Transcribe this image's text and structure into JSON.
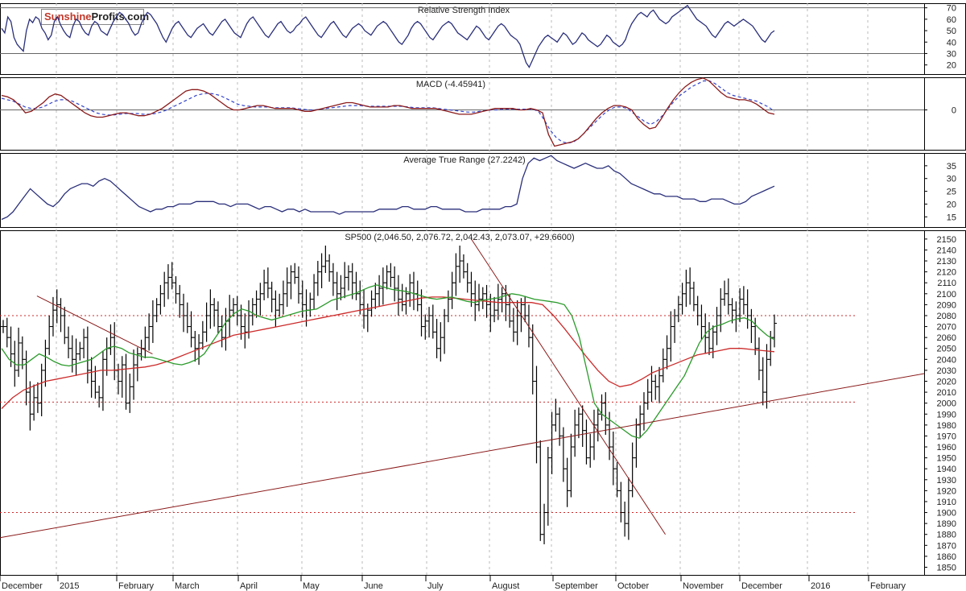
{
  "logo": {
    "part1": "Sunshine",
    "part2": "Profits.com"
  },
  "colors": {
    "rsi_line": "#2a2f7a",
    "macd_line": "#8b1a1a",
    "signal_line": "#3344cc",
    "atr_line": "#2a2f7a",
    "price_bars": "#000000",
    "ma_short": "#2a9a2a",
    "ma_long": "#cc2a2a",
    "trendline": "#8b1a1a",
    "support_dotted": "#cc2a2a",
    "grid": "#bbbbbb"
  },
  "chart_data": [
    {
      "type": "line",
      "name": "rsi",
      "title": "Relative Strength Index",
      "ylim": [
        12,
        74
      ],
      "yticks": [
        20,
        30,
        40,
        50,
        60,
        70
      ],
      "reference_lines": [
        30,
        70
      ],
      "values": [
        52,
        48,
        62,
        58,
        44,
        38,
        35,
        32,
        50,
        60,
        57,
        62,
        60,
        52,
        48,
        42,
        46,
        58,
        62,
        55,
        50,
        46,
        44,
        54,
        60,
        58,
        52,
        48,
        46,
        54,
        58,
        56,
        50,
        48,
        46,
        52,
        58,
        62,
        66,
        64,
        60,
        56,
        50,
        46,
        48,
        56,
        62,
        66,
        64,
        60,
        56,
        50,
        44,
        40,
        46,
        52,
        56,
        58,
        54,
        50,
        46,
        44,
        48,
        52,
        54,
        56,
        52,
        48,
        46,
        50,
        54,
        58,
        60,
        56,
        52,
        48,
        46,
        44,
        50,
        56,
        60,
        62,
        58,
        54,
        50,
        46,
        44,
        48,
        52,
        56,
        58,
        54,
        50,
        48,
        50,
        54,
        56,
        60,
        62,
        58,
        54,
        50,
        46,
        44,
        48,
        52,
        56,
        58,
        54,
        50,
        46,
        44,
        48,
        52,
        54,
        56,
        54,
        50,
        48,
        46,
        50,
        54,
        56,
        58,
        56,
        52,
        48,
        44,
        40,
        38,
        42,
        46,
        52,
        56,
        58,
        56,
        52,
        48,
        44,
        42,
        46,
        50,
        54,
        56,
        58,
        56,
        52,
        48,
        46,
        44,
        42,
        46,
        50,
        54,
        52,
        48,
        44,
        42,
        46,
        50,
        54,
        56,
        54,
        50,
        46,
        44,
        42,
        38,
        30,
        22,
        18,
        24,
        30,
        36,
        40,
        44,
        46,
        44,
        42,
        40,
        44,
        48,
        46,
        42,
        38,
        40,
        44,
        48,
        46,
        42,
        40,
        38,
        36,
        38,
        42,
        46,
        44,
        40,
        38,
        36,
        38,
        42,
        50,
        56,
        60,
        64,
        66,
        64,
        62,
        66,
        68,
        64,
        60,
        58,
        56,
        58,
        62,
        64,
        66,
        68,
        70,
        72,
        68,
        64,
        60,
        58,
        56,
        54,
        50,
        46,
        44,
        48,
        52,
        56,
        58,
        56,
        54,
        56,
        58,
        60,
        58,
        56,
        54,
        50,
        46,
        42,
        40,
        44,
        48,
        50
      ]
    },
    {
      "type": "line",
      "name": "macd",
      "title": "MACD (-4.45941)",
      "ylim": [
        -55,
        45
      ],
      "yticks": [
        0
      ],
      "zero_line": true,
      "series": [
        {
          "values": [
            20,
            18,
            14,
            6,
            -4,
            -2,
            4,
            10,
            18,
            22,
            20,
            14,
            8,
            2,
            -4,
            -8,
            -10,
            -10,
            -8,
            -6,
            -4,
            -4,
            -6,
            -8,
            -8,
            -6,
            -2,
            2,
            8,
            14,
            20,
            26,
            28,
            28,
            26,
            22,
            16,
            10,
            4,
            0,
            0,
            2,
            4,
            6,
            6,
            4,
            2,
            2,
            2,
            2,
            0,
            -2,
            -2,
            0,
            2,
            4,
            6,
            8,
            10,
            10,
            8,
            6,
            4,
            4,
            4,
            4,
            6,
            6,
            4,
            2,
            2,
            2,
            2,
            2,
            0,
            -2,
            -4,
            -6,
            -6,
            -6,
            -4,
            -2,
            0,
            2,
            2,
            2,
            2,
            0,
            0,
            2,
            0,
            -4,
            -34,
            -50,
            -48,
            -46,
            -44,
            -40,
            -32,
            -22,
            -12,
            -4,
            2,
            6,
            6,
            4,
            0,
            -12,
            -20,
            -26,
            -24,
            -12,
            2,
            14,
            24,
            32,
            38,
            42,
            44,
            40,
            32,
            24,
            18,
            16,
            14,
            14,
            12,
            8,
            2,
            -4,
            -6
          ]
        },
        {
          "values": [
            16,
            14,
            12,
            8,
            4,
            2,
            2,
            4,
            8,
            12,
            14,
            14,
            12,
            8,
            4,
            0,
            -4,
            -6,
            -7,
            -7,
            -6,
            -5,
            -5,
            -5,
            -6,
            -6,
            -5,
            -3,
            0,
            4,
            8,
            12,
            16,
            20,
            22,
            23,
            22,
            20,
            16,
            12,
            8,
            6,
            5,
            4,
            4,
            4,
            3,
            3,
            3,
            3,
            2,
            1,
            0,
            0,
            1,
            2,
            3,
            4,
            5,
            6,
            6,
            6,
            5,
            5,
            5,
            5,
            5,
            5,
            5,
            4,
            3,
            3,
            3,
            3,
            2,
            1,
            0,
            -1,
            -2,
            -3,
            -3,
            -2,
            -1,
            0,
            0,
            1,
            1,
            1,
            1,
            1,
            1,
            -2,
            -14,
            -28,
            -38,
            -44,
            -46,
            -44,
            -38,
            -30,
            -22,
            -14,
            -6,
            0,
            4,
            4,
            2,
            -4,
            -10,
            -16,
            -20,
            -16,
            -8,
            2,
            12,
            20,
            26,
            32,
            36,
            40,
            40,
            36,
            30,
            24,
            20,
            18,
            16,
            14,
            12,
            8,
            4,
            -2
          ]
        }
      ]
    },
    {
      "type": "line",
      "name": "atr",
      "title": "Average True Range (27.2242)",
      "ylim": [
        11,
        40
      ],
      "yticks": [
        15,
        20,
        25,
        30,
        35
      ],
      "values": [
        14,
        15,
        17,
        20,
        23,
        26,
        24,
        22,
        20,
        19,
        21,
        24,
        26,
        27,
        28,
        28,
        27,
        29,
        30,
        29,
        27,
        25,
        23,
        21,
        19,
        18,
        17,
        18,
        18,
        19,
        19,
        20,
        20,
        20,
        21,
        21,
        21,
        21,
        20,
        20,
        19,
        20,
        20,
        20,
        19,
        18,
        19,
        19,
        18,
        17,
        18,
        18,
        17,
        18,
        17,
        17,
        17,
        17,
        17,
        16,
        17,
        17,
        17,
        17,
        17,
        17,
        18,
        18,
        18,
        18,
        19,
        19,
        18,
        18,
        18,
        19,
        19,
        18,
        18,
        18,
        18,
        17,
        17,
        17,
        18,
        18,
        18,
        18,
        19,
        19,
        20,
        30,
        36,
        38,
        37,
        38,
        39,
        37,
        36,
        35,
        34,
        35,
        36,
        35,
        34,
        34,
        35,
        33,
        32,
        30,
        28,
        27,
        26,
        25,
        24,
        24,
        23,
        23,
        23,
        22,
        22,
        22,
        21,
        21,
        22,
        22,
        22,
        21,
        20,
        20,
        21,
        23,
        24,
        25,
        26,
        27
      ]
    },
    {
      "type": "bar",
      "name": "sp500",
      "title": "SP500 (2,046.50, 2,076.72, 2,042.43, 2,073.07, +29.6600)",
      "ylim": [
        1843,
        2158
      ],
      "yticks": [
        1850,
        1860,
        1870,
        1880,
        1890,
        1900,
        1910,
        1920,
        1930,
        1940,
        1950,
        1960,
        1970,
        1980,
        1990,
        2000,
        2010,
        2020,
        2030,
        2040,
        2050,
        2060,
        2070,
        2080,
        2090,
        2100,
        2110,
        2120,
        2130,
        2140,
        2150
      ],
      "xticks": [
        "December",
        "2015",
        "February",
        "March",
        "April",
        "May",
        "June",
        "July",
        "August",
        "September",
        "October",
        "November",
        "December",
        "2016",
        "February"
      ],
      "closes": [
        2070,
        2060,
        2045,
        2030,
        2055,
        2040,
        2010,
        1990,
        2005,
        2000,
        2030,
        2050,
        2070,
        2085,
        2090,
        2080,
        2060,
        2050,
        2040,
        2045,
        2050,
        2060,
        2030,
        2020,
        2010,
        2005,
        2040,
        2050,
        2060,
        2030,
        2020,
        2035,
        2000,
        2015,
        2035,
        2045,
        2050,
        2060,
        2070,
        2080,
        2090,
        2100,
        2110,
        2115,
        2110,
        2100,
        2090,
        2080,
        2070,
        2060,
        2050,
        2055,
        2065,
        2080,
        2090,
        2085,
        2070,
        2060,
        2075,
        2085,
        2090,
        2080,
        2070,
        2065,
        2080,
        2090,
        2095,
        2100,
        2110,
        2105,
        2095,
        2085,
        2090,
        2100,
        2110,
        2120,
        2115,
        2100,
        2090,
        2085,
        2095,
        2110,
        2120,
        2125,
        2130,
        2120,
        2110,
        2100,
        2105,
        2115,
        2120,
        2110,
        2100,
        2090,
        2080,
        2085,
        2095,
        2100,
        2105,
        2110,
        2120,
        2115,
        2105,
        2095,
        2090,
        2100,
        2110,
        2100,
        2090,
        2070,
        2075,
        2080,
        2065,
        2050,
        2060,
        2080,
        2095,
        2110,
        2125,
        2130,
        2120,
        2110,
        2100,
        2090,
        2095,
        2100,
        2090,
        2080,
        2085,
        2095,
        2100,
        2090,
        2075,
        2065,
        2080,
        2090,
        2080,
        2060,
        2020,
        1960,
        1880,
        1900,
        1950,
        1980,
        1990,
        1970,
        1940,
        1920,
        1960,
        1980,
        1990,
        1975,
        1950,
        1960,
        1980,
        1990,
        2000,
        1980,
        1960,
        1940,
        1920,
        1900,
        1890,
        1920,
        1950,
        1980,
        1990,
        2000,
        2010,
        2020,
        2015,
        2025,
        2040,
        2050,
        2070,
        2080,
        2090,
        2100,
        2110,
        2105,
        2090,
        2080,
        2070,
        2060,
        2050,
        2065,
        2080,
        2095,
        2100,
        2090,
        2085,
        2080,
        2095,
        2090,
        2080,
        2070,
        2050,
        2030,
        2010,
        2040,
        2060,
        2073
      ],
      "ma_short": [
        2050,
        2040,
        2035,
        2035,
        2040,
        2045,
        2042,
        2038,
        2035,
        2034,
        2036,
        2038,
        2040,
        2045,
        2050,
        2052,
        2050,
        2046,
        2044,
        2042,
        2042,
        2040,
        2038,
        2036,
        2035,
        2037,
        2040,
        2045,
        2055,
        2065,
        2075,
        2082,
        2086,
        2084,
        2080,
        2078,
        2076,
        2078,
        2080,
        2082,
        2084,
        2085,
        2086,
        2090,
        2094,
        2096,
        2098,
        2100,
        2103,
        2106,
        2108,
        2106,
        2104,
        2103,
        2102,
        2100,
        2098,
        2096,
        2095,
        2096,
        2097,
        2095,
        2093,
        2092,
        2094,
        2095,
        2096,
        2098,
        2100,
        2099,
        2097,
        2095,
        2094,
        2093,
        2092,
        2090,
        2080,
        2060,
        2030,
        2000,
        1990,
        1985,
        1980,
        1975,
        1970,
        1968,
        1975,
        1985,
        1995,
        2005,
        2015,
        2025,
        2040,
        2055,
        2065,
        2070,
        2072,
        2075,
        2077,
        2078,
        2075,
        2068,
        2062,
        2058
      ],
      "ma_long": [
        1995,
        2005,
        2012,
        2016,
        2020,
        2022,
        2024,
        2026,
        2028,
        2030,
        2030,
        2031,
        2032,
        2033,
        2035,
        2038,
        2042,
        2046,
        2050,
        2054,
        2058,
        2062,
        2064,
        2066,
        2068,
        2070,
        2072,
        2074,
        2076,
        2078,
        2080,
        2082,
        2084,
        2086,
        2088,
        2090,
        2092,
        2094,
        2096,
        2097,
        2097,
        2096,
        2095,
        2094,
        2093,
        2092,
        2092,
        2092,
        2092,
        2090,
        2080,
        2068,
        2055,
        2042,
        2030,
        2020,
        2015,
        2017,
        2022,
        2028,
        2032,
        2036,
        2040,
        2044,
        2046,
        2048,
        2050,
        2050,
        2049,
        2048,
        2047
      ],
      "reference_lines": [
        2080,
        2001,
        1900
      ],
      "trendlines": [
        {
          "from": [
            0,
            1877
          ],
          "to": [
            1,
            2027
          ]
        },
        {
          "from": [
            0.04,
            2098
          ],
          "to": [
            0.165,
            2045
          ]
        },
        {
          "from": [
            0.51,
            2150
          ],
          "to": [
            0.72,
            1880
          ]
        }
      ]
    }
  ]
}
